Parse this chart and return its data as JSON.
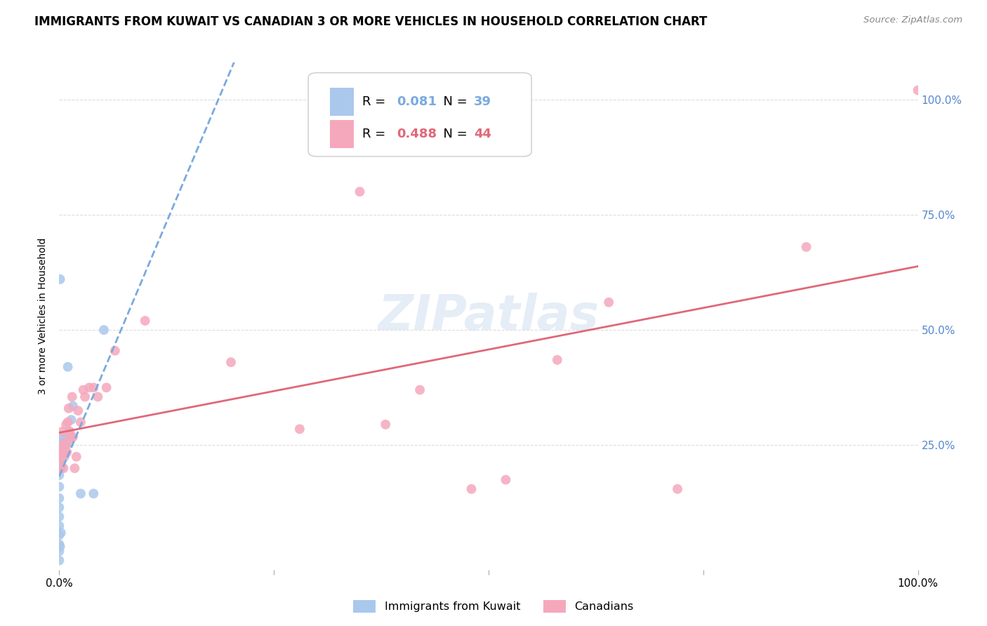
{
  "title": "IMMIGRANTS FROM KUWAIT VS CANADIAN 3 OR MORE VEHICLES IN HOUSEHOLD CORRELATION CHART",
  "source": "Source: ZipAtlas.com",
  "ylabel": "3 or more Vehicles in Household",
  "legend_entry1": {
    "R": "0.081",
    "N": "39",
    "label": "Immigrants from Kuwait"
  },
  "legend_entry2": {
    "R": "0.488",
    "N": "44",
    "label": "Canadians"
  },
  "blue_x": [
    0.0,
    0.0,
    0.0,
    0.0,
    0.0,
    0.0,
    0.0,
    0.0,
    0.0,
    0.0,
    0.001,
    0.001,
    0.001,
    0.002,
    0.002,
    0.002,
    0.003,
    0.003,
    0.003,
    0.004,
    0.004,
    0.005,
    0.005,
    0.006,
    0.006,
    0.007,
    0.008,
    0.009,
    0.01,
    0.01,
    0.012,
    0.014,
    0.016,
    0.025,
    0.04,
    0.052,
    0.001,
    0.001,
    0.002
  ],
  "blue_y": [
    0.0,
    0.02,
    0.035,
    0.055,
    0.075,
    0.095,
    0.115,
    0.135,
    0.16,
    0.185,
    0.2,
    0.215,
    0.225,
    0.22,
    0.235,
    0.25,
    0.22,
    0.24,
    0.265,
    0.22,
    0.25,
    0.23,
    0.265,
    0.225,
    0.255,
    0.25,
    0.26,
    0.26,
    0.255,
    0.42,
    0.28,
    0.305,
    0.335,
    0.145,
    0.145,
    0.5,
    0.61,
    0.03,
    0.06
  ],
  "pink_x": [
    0.0,
    0.0,
    0.001,
    0.002,
    0.003,
    0.004,
    0.004,
    0.005,
    0.006,
    0.007,
    0.008,
    0.008,
    0.009,
    0.01,
    0.011,
    0.012,
    0.013,
    0.014,
    0.015,
    0.016,
    0.018,
    0.02,
    0.022,
    0.025,
    0.028,
    0.03,
    0.035,
    0.04,
    0.045,
    0.055,
    0.065,
    0.1,
    0.2,
    0.28,
    0.35,
    0.38,
    0.42,
    0.48,
    0.52,
    0.58,
    0.64,
    0.72,
    0.87,
    1.0
  ],
  "pink_y": [
    0.22,
    0.24,
    0.22,
    0.2,
    0.24,
    0.225,
    0.28,
    0.2,
    0.255,
    0.23,
    0.25,
    0.295,
    0.235,
    0.3,
    0.33,
    0.28,
    0.268,
    0.265,
    0.355,
    0.268,
    0.2,
    0.225,
    0.325,
    0.3,
    0.37,
    0.355,
    0.375,
    0.375,
    0.355,
    0.375,
    0.455,
    0.52,
    0.43,
    0.285,
    0.8,
    0.295,
    0.37,
    0.155,
    0.175,
    0.435,
    0.56,
    0.155,
    0.68,
    1.02
  ],
  "watermark": "ZIPatlas",
  "background_color": "#ffffff",
  "grid_color": "#dddddd",
  "blue_line_color": "#7aaadd",
  "pink_line_color": "#e06878",
  "blue_dot_color": "#aac8ec",
  "pink_dot_color": "#f5a8bc",
  "right_axis_color": "#5588cc",
  "title_fontsize": 12,
  "axis_label_fontsize": 10
}
